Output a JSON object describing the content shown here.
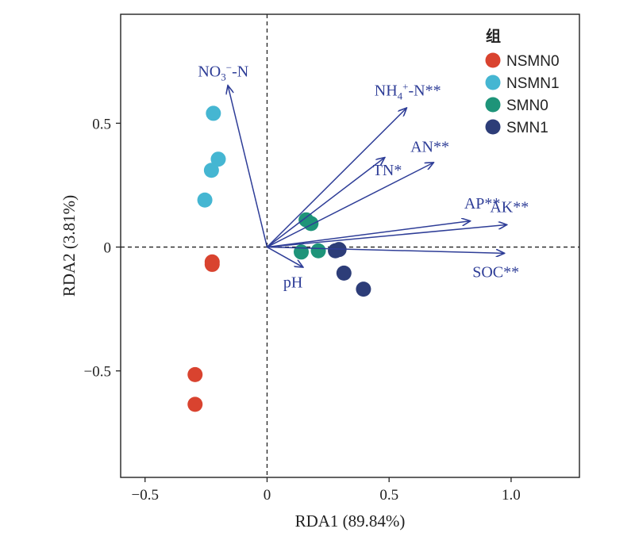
{
  "chart_data": {
    "type": "scatter",
    "subtype": "RDA biplot",
    "title": "",
    "xlabel": "RDA1 (89.84%)",
    "ylabel": "RDA2 (3.81%)",
    "xlim": [
      -0.6,
      1.28
    ],
    "ylim": [
      -0.93,
      0.94
    ],
    "xticks": [
      -0.5,
      0,
      0.5,
      1.0
    ],
    "xtick_labels": [
      "−0.5",
      "0",
      "0.5",
      "1.0"
    ],
    "yticks": [
      -0.5,
      0,
      0.5
    ],
    "ytick_labels": [
      "−0.5",
      "0",
      "0.5"
    ],
    "grid": false,
    "reference_lines": {
      "x": 0,
      "y": 0,
      "style": "dashed"
    },
    "arrow_color": "#2e3d97",
    "legend": {
      "title": "组",
      "placement": "top-right"
    },
    "series": [
      {
        "name": "NSMN0",
        "color": "#d9432f",
        "points": [
          [
            -0.225,
            -0.06
          ],
          [
            -0.225,
            -0.07
          ],
          [
            -0.295,
            -0.515
          ],
          [
            -0.295,
            -0.635
          ]
        ]
      },
      {
        "name": "NSMN1",
        "color": "#45b6d2",
        "points": [
          [
            -0.22,
            0.54
          ],
          [
            -0.2,
            0.355
          ],
          [
            -0.228,
            0.31
          ],
          [
            -0.255,
            0.19
          ]
        ]
      },
      {
        "name": "SMN0",
        "color": "#1e9479",
        "points": [
          [
            0.16,
            0.11
          ],
          [
            0.18,
            0.095
          ],
          [
            0.14,
            -0.02
          ],
          [
            0.21,
            -0.015
          ]
        ]
      },
      {
        "name": "SMN1",
        "color": "#2d3d78",
        "points": [
          [
            0.28,
            -0.015
          ],
          [
            0.295,
            -0.01
          ],
          [
            0.315,
            -0.105
          ],
          [
            0.395,
            -0.17
          ]
        ]
      }
    ],
    "arrows": [
      {
        "label_main": "NO",
        "label_sub": "3",
        "label_sup": "−",
        "label_rest": "-N",
        "label": "NO3−-N",
        "x": -0.16,
        "y": 0.65
      },
      {
        "label_main": "NH",
        "label_sub": "4",
        "label_sup": "+",
        "label_rest": "-N**",
        "label": "NH4+-N**",
        "x": 0.57,
        "y": 0.56
      },
      {
        "label": "TN*",
        "x": 0.48,
        "y": 0.36
      },
      {
        "label": "AN**",
        "x": 0.68,
        "y": 0.34
      },
      {
        "label": "AP**",
        "x": 0.83,
        "y": 0.105
      },
      {
        "label": "AK**",
        "x": 0.98,
        "y": 0.09
      },
      {
        "label": "SOC**",
        "x": 0.97,
        "y": -0.025
      },
      {
        "label": "pH",
        "x": 0.145,
        "y": -0.08
      }
    ]
  }
}
